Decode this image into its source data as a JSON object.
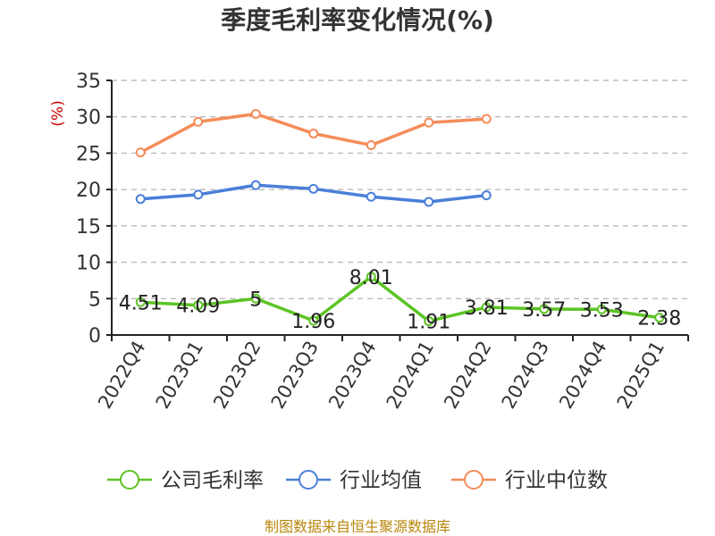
{
  "chart_data": {
    "type": "line",
    "title": "季度毛利率变化情况(%)",
    "ylabel": "(%)",
    "xlabel": "",
    "ylim": [
      0,
      35
    ],
    "yticks": [
      0,
      5,
      10,
      15,
      20,
      25,
      30,
      35
    ],
    "grid": true,
    "legend_position": "bottom",
    "categories": [
      "2022Q4",
      "2023Q1",
      "2023Q2",
      "2023Q3",
      "2023Q4",
      "2024Q1",
      "2024Q2",
      "2024Q3",
      "2024Q4",
      "2025Q1"
    ],
    "series": [
      {
        "name": "公司毛利率",
        "color": "#5cc424",
        "values": [
          4.51,
          4.09,
          5,
          1.96,
          8.01,
          1.91,
          3.81,
          3.57,
          3.53,
          2.38
        ],
        "labels": [
          "4.51",
          "4.09",
          "5",
          "1.96",
          "8.01",
          "1.91",
          "3.81",
          "3.57",
          "3.53",
          "2.38"
        ]
      },
      {
        "name": "行业均值",
        "color": "#4a7fd9",
        "values": [
          18.7,
          19.3,
          20.6,
          20.1,
          19.0,
          18.3,
          19.2,
          null,
          null,
          null
        ]
      },
      {
        "name": "行业中位数",
        "color": "#f58c5a",
        "values": [
          25.1,
          29.3,
          30.4,
          27.7,
          26.1,
          29.2,
          29.7,
          null,
          null,
          null
        ]
      }
    ],
    "source": "制图数据来自恒生聚源数据库"
  }
}
